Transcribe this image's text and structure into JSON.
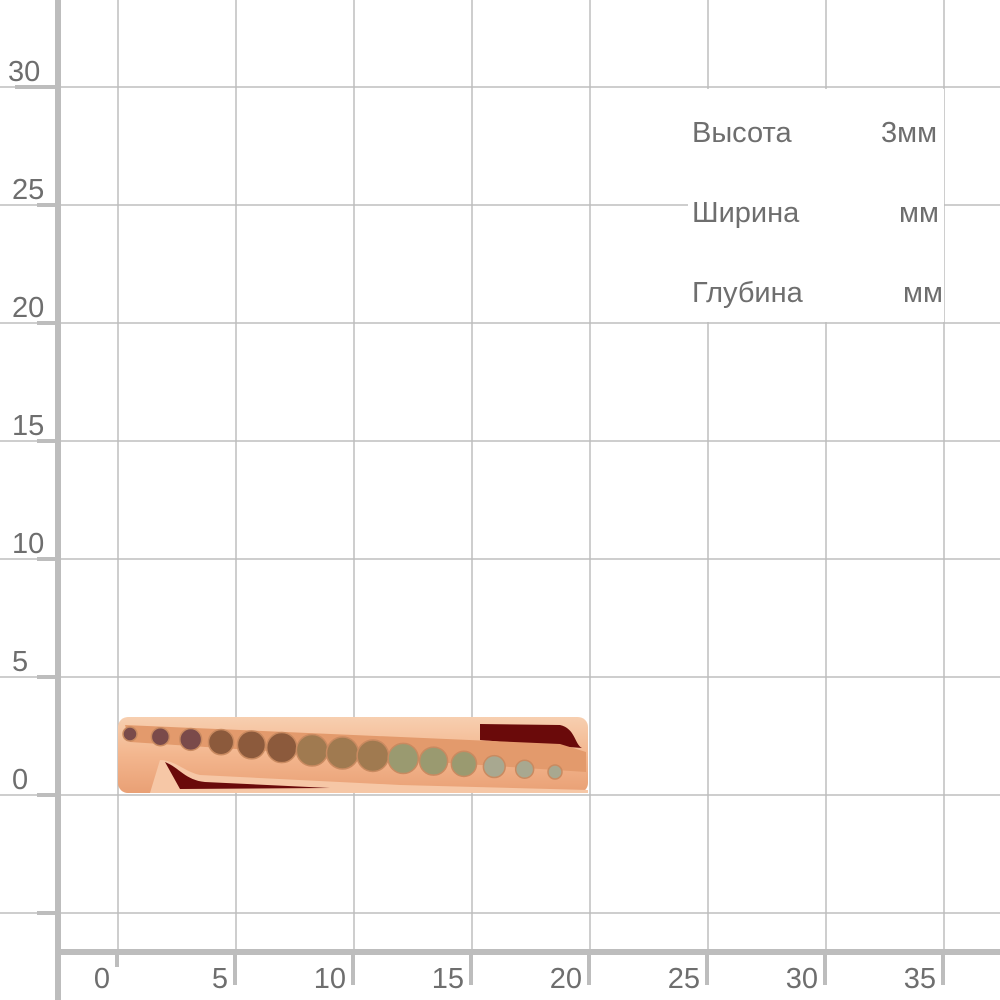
{
  "scale": {
    "unit": "mm",
    "x_ticks": [
      "0",
      "5",
      "10",
      "15",
      "20",
      "25",
      "30",
      "35"
    ],
    "y_ticks": [
      "0",
      "5",
      "10",
      "15",
      "20",
      "25",
      "30"
    ],
    "grid_color": "#bdbdbd",
    "label_color": "#6e6e6e"
  },
  "specs": [
    {
      "label": "Высота",
      "value": "3мм"
    },
    {
      "label": "Ширина",
      "value": "мм"
    },
    {
      "label": "Глубина",
      "value": "мм"
    }
  ],
  "product": {
    "metal_color": "#f2b48c",
    "stone_gradient": [
      "#7a4a4a",
      "#8c5a3c",
      "#a07a50",
      "#9a9a70",
      "#a8a890"
    ]
  }
}
